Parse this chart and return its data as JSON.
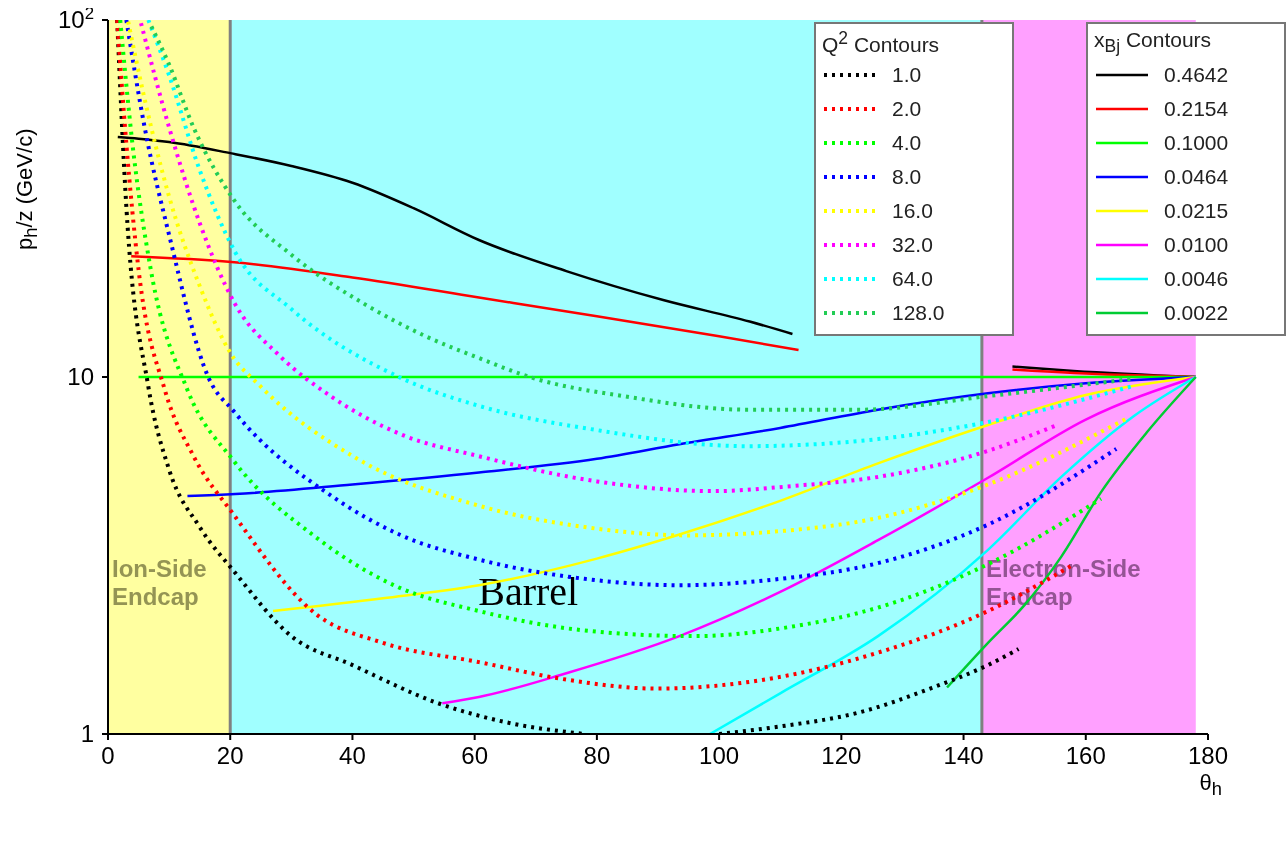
{
  "chart_data": {
    "type": "line",
    "xlabel": "θ$_{h}$",
    "ylabel": "p$_{h}$/z (GeV/c)",
    "legend_title": "Q$^{2}$ Contours",
    "annotations": [
      "x$_{Bj}$ Contours"
    ],
    "xlim": [
      0,
      180
    ],
    "xticks": [
      0,
      20,
      40,
      60,
      80,
      100,
      120,
      140,
      160,
      180
    ],
    "ylim": [
      1,
      100
    ],
    "yticks": [
      1,
      10,
      {
        "value": 100,
        "label": "10$^{2}$"
      }
    ],
    "log": "y",
    "grid": false,
    "legend": "top right",
    "bands": [
      {
        "axis": "x",
        "from": 0,
        "to": 20,
        "label": "Ion-Side Endcap",
        "color": "#ffff80"
      },
      {
        "axis": "x",
        "from": 20,
        "to": 143,
        "label": "Barrel",
        "color": "#80ffff"
      },
      {
        "axis": "x",
        "from": 143,
        "to": 178,
        "label": "Electron-Side Endcap",
        "color": "#ff80ff"
      }
    ],
    "ref_lines": [
      {
        "axis": "x",
        "value": 20,
        "color": "#808080"
      },
      {
        "axis": "x",
        "value": 143,
        "color": "#808080"
      }
    ],
    "series": [
      {
        "name": "1.0",
        "color": "#000000",
        "line_style": "dotted",
        "x": [
          1.5,
          3,
          6.6,
          10,
          15,
          20.8,
          30,
          40,
          54,
          65,
          78,
          90,
          100,
          110,
          123,
          135,
          144,
          149
        ],
        "values": [
          100,
          30,
          9.4,
          5.5,
          3.8,
          2.83,
          1.88,
          1.56,
          1.22,
          1.08,
          1.0,
          null,
          1.0,
          1.05,
          1.15,
          1.35,
          1.56,
          1.73
        ]
      },
      {
        "name": "2.0",
        "color": "#ff0000",
        "line_style": "dotted",
        "x": [
          1.5,
          3,
          5,
          9.3,
          14,
          20.5,
          34,
          45,
          60.7,
          75,
          89.8,
          105,
          126,
          144,
          157.5
        ],
        "values": [
          100,
          45,
          20,
          9.2,
          6,
          4.13,
          2.17,
          1.8,
          1.59,
          1.42,
          1.34,
          1.4,
          1.69,
          2.21,
          2.95
        ]
      },
      {
        "name": "4.0",
        "color": "#00ff00",
        "line_style": "dotted",
        "x": [
          2,
          4,
          7,
          13,
          20.5,
          34,
          47,
          60.7,
          78,
          96,
          112,
          126,
          144,
          162.5
        ],
        "values": [
          100,
          45,
          20,
          9.2,
          5.84,
          3.56,
          2.6,
          2.21,
          1.95,
          1.88,
          2.0,
          2.26,
          2.99,
          4.56
        ]
      },
      {
        "name": "8.0",
        "color": "#0000ff",
        "line_style": "dotted",
        "x": [
          3,
          6,
          10,
          16.4,
          20.8,
          36.6,
          48,
          60.7,
          78,
          93.5,
          110,
          126,
          144,
          165
        ],
        "values": [
          100,
          50,
          25,
          10,
          7.94,
          4.64,
          3.6,
          3.08,
          2.72,
          2.61,
          2.72,
          3.01,
          3.86,
          6.29
        ]
      },
      {
        "name": "16.0",
        "color": "#ffff00",
        "line_style": "dotted",
        "x": [
          3.3,
          6,
          10,
          15,
          20,
          25,
          40.5,
          60.7,
          78,
          94.7,
          110,
          126,
          144,
          167
        ],
        "values": [
          99,
          60,
          32,
          18,
          11.7,
          9.4,
          5.94,
          4.36,
          3.8,
          3.6,
          3.7,
          4.03,
          5.0,
          7.7
        ]
      },
      {
        "name": "32.0",
        "color": "#ff00ff",
        "line_style": "dotted",
        "x": [
          5.4,
          10,
          15,
          20.8,
          28,
          36.6,
          48,
          60.7,
          80,
          99,
          112,
          126,
          144,
          155
        ],
        "values": [
          98,
          50,
          27,
          16,
          11.5,
          8.8,
          6.9,
          6.0,
          5.1,
          4.79,
          4.95,
          5.25,
          6.21,
          7.3
        ]
      },
      {
        "name": "64.0",
        "color": "#00ffff",
        "line_style": "dotted",
        "x": [
          6.6,
          10,
          15,
          20.8,
          30,
          47.6,
          60.7,
          80,
          104.5,
          126,
          144,
          168
        ],
        "values": [
          100,
          70,
          38,
          22.4,
          15.5,
          10,
          8.3,
          7.1,
          6.4,
          6.7,
          7.48,
          9.46
        ]
      },
      {
        "name": "128.0",
        "color": "#22cc55",
        "line_style": "dotted",
        "x": [
          7.1,
          10,
          14,
          20.8,
          30,
          42,
          52,
          60.7,
          69,
          85,
          104.5,
          123,
          144,
          168
        ],
        "values": [
          96,
          75,
          50,
          31,
          22,
          16,
          13,
          11.3,
          10,
          8.8,
          8.1,
          8.1,
          8.84,
          9.9
        ]
      },
      {
        "name": "0.4642",
        "color": "#000000",
        "line_style": "solid",
        "x": [
          1.6,
          5,
          10,
          20.2,
          30,
          40,
          50,
          60.7,
          75,
          91,
          105,
          112,
          130,
          148,
          158,
          178
        ],
        "values": [
          47,
          46.5,
          45.5,
          42.3,
          39,
          35,
          29.7,
          24.2,
          19.8,
          16.4,
          14.3,
          13.2,
          null,
          10.7,
          10.4,
          10
        ]
      },
      {
        "name": "0.2154",
        "color": "#ff0000",
        "line_style": "solid",
        "x": [
          3.8,
          20.2,
          40,
          60.7,
          80,
          100,
          113,
          130,
          148,
          165,
          178
        ],
        "values": [
          21.8,
          21,
          19,
          16.7,
          14.8,
          13,
          11.9,
          null,
          10.5,
          10.15,
          10
        ]
      },
      {
        "name": "0.1000",
        "color": "#00ff00",
        "line_style": "solid",
        "x": [
          5,
          90,
          178
        ],
        "values": [
          10,
          10,
          10
        ]
      },
      {
        "name": "0.0464",
        "color": "#0000ff",
        "line_style": "solid",
        "x": [
          13,
          20.8,
          40,
          60.7,
          80,
          93.5,
          110,
          126,
          144,
          160,
          178
        ],
        "values": [
          4.64,
          4.7,
          5.0,
          5.4,
          5.9,
          6.48,
          7.2,
          8.1,
          9.0,
          9.6,
          10
        ]
      },
      {
        "name": "0.0215",
        "color": "#ffff00",
        "line_style": "solid",
        "x": [
          27,
          45,
          60.7,
          80,
          93.5,
          110,
          126,
          144,
          160,
          178
        ],
        "values": [
          2.21,
          2.4,
          2.61,
          3.1,
          3.62,
          4.5,
          5.73,
          7.34,
          8.9,
          10
        ]
      },
      {
        "name": "0.0100",
        "color": "#ff00ff",
        "line_style": "solid",
        "x": [
          54.7,
          60.7,
          75,
          93.5,
          110,
          126,
          144,
          160,
          178
        ],
        "values": [
          1.22,
          1.27,
          1.48,
          1.88,
          2.5,
          3.49,
          5.22,
          7.6,
          10
        ]
      },
      {
        "name": "0.0046",
        "color": "#00ffff",
        "line_style": "solid",
        "x": [
          98.5,
          110,
          126,
          144,
          156,
          168,
          178
        ],
        "values": [
          1.0,
          1.3,
          1.88,
          3.28,
          5.25,
          7.8,
          10
        ]
      },
      {
        "name": "0.0022",
        "color": "#00cc33",
        "line_style": "solid",
        "x": [
          137.3,
          144,
          150,
          156,
          162.5,
          170,
          178
        ],
        "values": [
          1.35,
          1.8,
          2.3,
          3.14,
          4.76,
          7,
          10
        ]
      }
    ]
  }
}
